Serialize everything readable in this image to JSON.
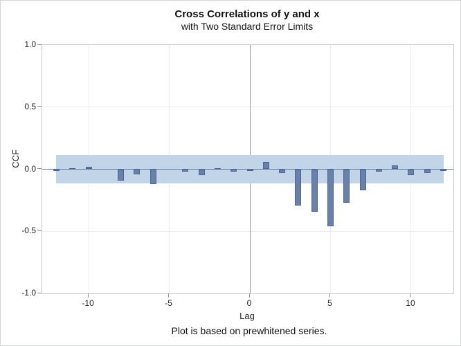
{
  "header": {
    "title": "Cross Correlations of y and x",
    "subtitle": "with Two Standard Error Limits"
  },
  "footer": {
    "note": "Plot is based on prewhitened series."
  },
  "chart_data": {
    "type": "bar",
    "title": "Cross Correlations of y and x",
    "subtitle": "with Two Standard Error Limits",
    "footnote": "Plot is based on prewhitened series.",
    "xlabel": "Lag",
    "ylabel": "CCF",
    "x": [
      -12,
      -11,
      -10,
      -9,
      -8,
      -7,
      -6,
      -5,
      -4,
      -3,
      -2,
      -1,
      0,
      1,
      2,
      3,
      4,
      5,
      6,
      7,
      8,
      9,
      10,
      11,
      12
    ],
    "values": [
      -0.01,
      0.01,
      0.02,
      0.0,
      -0.09,
      -0.04,
      -0.12,
      0.0,
      -0.02,
      -0.05,
      0.01,
      -0.02,
      -0.01,
      0.06,
      -0.03,
      -0.29,
      -0.34,
      -0.46,
      -0.27,
      -0.17,
      -0.02,
      0.03,
      -0.05,
      -0.03,
      -0.01
    ],
    "xlim": [
      -12.88,
      12.62
    ],
    "ylim": [
      -1.0,
      1.0
    ],
    "xtick_values": [
      -10,
      -5,
      0,
      5,
      10
    ],
    "xtick_labels": [
      "-10",
      "-5",
      "0",
      "5",
      "10"
    ],
    "ytick_values": [
      1.0,
      0.5,
      0.0,
      -0.5,
      -1.0
    ],
    "ytick_labels": [
      "1.0",
      "0.5",
      "0.0",
      "-0.5",
      "-1.0"
    ],
    "grid": true,
    "reference_line_x": 0,
    "confidence_band": {
      "lower": -0.115,
      "upper": 0.115,
      "x_from": -12,
      "x_to": 12
    },
    "legend": "none",
    "colors": {
      "bar_fill": "#6a80a8",
      "bar_border": "#4e6491",
      "band_fill": "#c2d4e8",
      "zero_line": "#5577a9",
      "ref_line": "#9d9d9d",
      "grid_line": "#ebebeb",
      "axis_line": "#cbcbcb",
      "tick_mark": "#8f8f8f",
      "text": "#262626"
    }
  }
}
